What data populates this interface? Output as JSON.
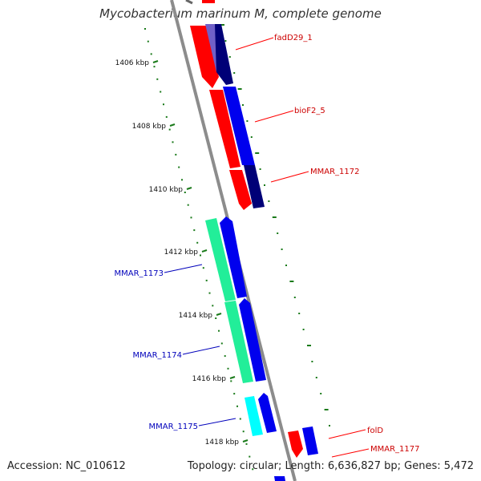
{
  "title": "Mycobacterium marinum M, complete genome",
  "footer": {
    "accession": "Accession: NC_010612",
    "summary": "Topology: circular; Length: 6,636,827 bp; Genes: 5,472"
  },
  "colors": {
    "backbone": "#8c8c8c",
    "tick": "#1a7a1a",
    "red_gene": "#ff0000",
    "blue_gene": "#0000ee",
    "navy_gene": "#000077",
    "violet_gene": "#7060c8",
    "green_gene": "#22ee99",
    "cyan_gene": "#00ffff",
    "label_red": "#cc0000",
    "label_blue": "#0000bb"
  },
  "ticks": [
    {
      "kbp": 1406,
      "label": "1406 kbp"
    },
    {
      "kbp": 1408,
      "label": "1408 kbp"
    },
    {
      "kbp": 1410,
      "label": "1410 kbp"
    },
    {
      "kbp": 1412,
      "label": "1412 kbp"
    },
    {
      "kbp": 1414,
      "label": "1414 kbp"
    },
    {
      "kbp": 1416,
      "label": "1416 kbp"
    },
    {
      "kbp": 1418,
      "label": "1418 kbp"
    }
  ],
  "genes": [
    {
      "name": "fadD29_1",
      "strand": "+",
      "side": "right",
      "label_color": "label_red"
    },
    {
      "name": "bioF2_5",
      "strand": "+",
      "side": "right",
      "label_color": "label_red"
    },
    {
      "name": "MMAR_1172",
      "strand": "+",
      "side": "right",
      "label_color": "label_red"
    },
    {
      "name": "MMAR_1173",
      "strand": "-",
      "side": "left",
      "label_color": "label_blue"
    },
    {
      "name": "MMAR_1174",
      "strand": "-",
      "side": "left",
      "label_color": "label_blue"
    },
    {
      "name": "MMAR_1175",
      "strand": "-",
      "side": "left",
      "label_color": "label_blue"
    },
    {
      "name": "folD",
      "strand": "+",
      "side": "right",
      "label_color": "label_red"
    },
    {
      "name": "MMAR_1177",
      "strand": "+",
      "side": "right",
      "label_color": "label_red"
    }
  ]
}
